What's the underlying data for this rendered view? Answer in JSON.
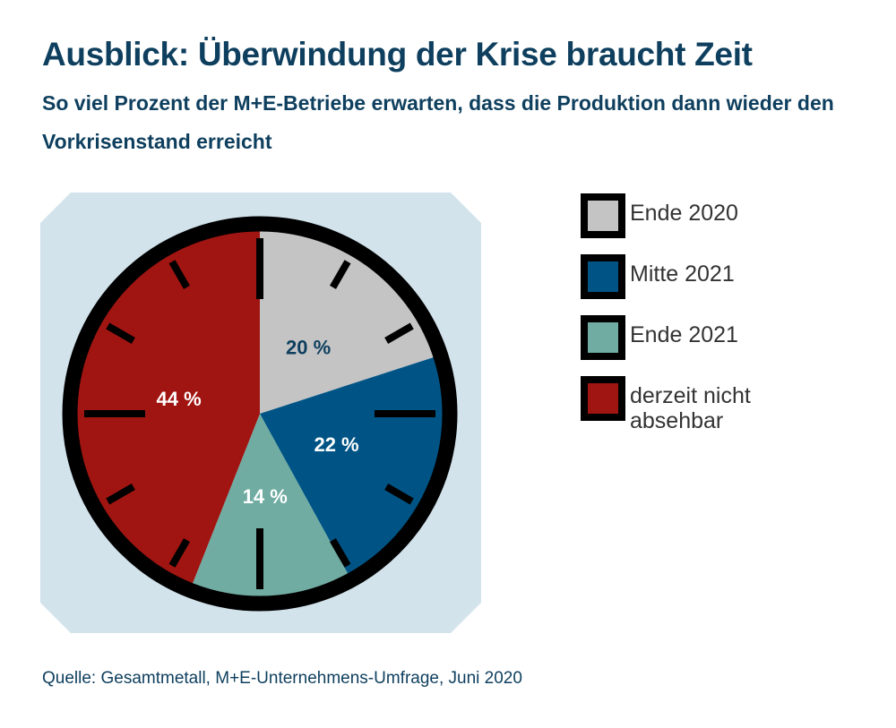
{
  "title": "Ausblick: Überwindung der Krise braucht Zeit",
  "subtitle": "So viel Prozent der M+E-Betriebe erwarten, dass die Produktion dann wieder den Vorkrisenstand erreicht",
  "source": "Quelle: Gesamtmetall, M+E-Unternehmens-Umfrage, Juni 2020",
  "chart_data": {
    "type": "pie",
    "title": "Ausblick: Überwindung der Krise braucht Zeit",
    "start": "12 o'clock",
    "direction": "clockwise",
    "legend_position": "right",
    "slices": [
      {
        "label": "Ende 2020",
        "value": 20,
        "display": "20 %",
        "color": "#c4c4c4",
        "text_color": "#0e3f5e"
      },
      {
        "label": "Mitte 2021",
        "value": 22,
        "display": "22 %",
        "color": "#005485",
        "text_color": "#ffffff"
      },
      {
        "label": "Ende 2021",
        "value": 14,
        "display": "14 %",
        "color": "#70aca2",
        "text_color": "#ffffff"
      },
      {
        "label": "derzeit nicht absehbar",
        "value": 44,
        "display": "44 %",
        "color": "#a01511",
        "text_color": "#ffffff"
      }
    ],
    "background_color": "#d2e3ec"
  }
}
